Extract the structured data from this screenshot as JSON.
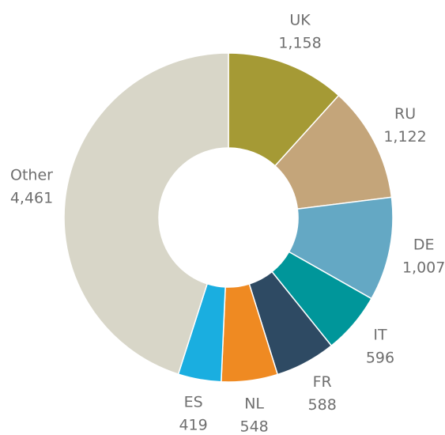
{
  "chart_data": {
    "type": "donut",
    "categories": [
      "UK",
      "RU",
      "DE",
      "IT",
      "FR",
      "NL",
      "ES",
      "Other"
    ],
    "values": [
      1158,
      1122,
      1007,
      596,
      588,
      548,
      419,
      4461
    ],
    "value_labels": [
      "1,158",
      "1,122",
      "1,007",
      "596",
      "588",
      "548",
      "419",
      "4,461"
    ],
    "colors": [
      "#a59a35",
      "#c4a57a",
      "#64a8c4",
      "#00969a",
      "#2e4a63",
      "#ef8a22",
      "#1aaee0",
      "#d8d6c8"
    ]
  }
}
